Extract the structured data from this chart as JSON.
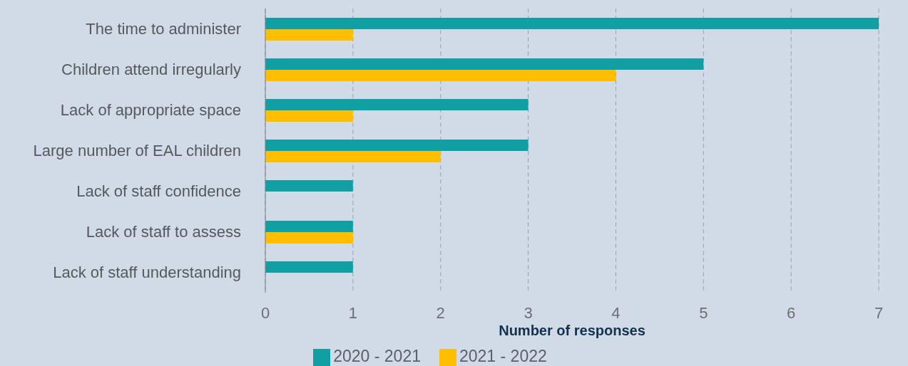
{
  "chart_data": {
    "type": "bar",
    "orientation": "horizontal",
    "xlabel": "Number of responses",
    "categories": [
      "The time to administer",
      "Children attend irregularly",
      "Lack of appropriate space",
      "Large number of EAL children",
      "Lack of staff confidence",
      "Lack of staff to assess",
      "Lack of staff understanding"
    ],
    "series": [
      {
        "name": "2020 - 2021",
        "color": "#10a0a4",
        "values": [
          7,
          5,
          3,
          3,
          1,
          1,
          1
        ]
      },
      {
        "name": "2021 - 2022",
        "color": "#ffbf00",
        "values": [
          1,
          4,
          1,
          2,
          0,
          1,
          0
        ]
      }
    ],
    "xlim": [
      0,
      7
    ],
    "xticks": [
      0,
      1,
      2,
      3,
      4,
      5,
      6,
      7
    ],
    "grid": "x",
    "legend": "bottom"
  }
}
